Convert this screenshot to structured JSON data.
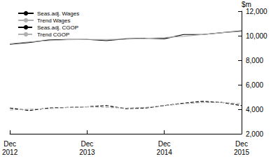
{
  "chart_data": {
    "type": "line",
    "ylabel": "$m",
    "categories": [
      "Dec 2012",
      null,
      null,
      null,
      "Dec 2013",
      null,
      null,
      null,
      "Dec 2014",
      null,
      null,
      null,
      "Dec 2015"
    ],
    "series": [
      {
        "name": "Seas.adj. Wages",
        "color": "#000000",
        "line_style": "solid",
        "values": [
          9300,
          9450,
          9650,
          9700,
          9700,
          9600,
          9750,
          9800,
          9750,
          10100,
          10100,
          10250,
          10400
        ]
      },
      {
        "name": "Trend Wages",
        "color": "#b0b0b0",
        "line_style": "solid",
        "values": [
          9350,
          9500,
          9600,
          9680,
          9700,
          9700,
          9720,
          9780,
          9850,
          9950,
          10100,
          10250,
          10350
        ]
      },
      {
        "name": "Seas.adj. CGOP",
        "color": "#000000",
        "line_style": "dashed",
        "values": [
          4100,
          3900,
          4100,
          4150,
          4200,
          4300,
          4050,
          4100,
          4300,
          4500,
          4650,
          4550,
          4300
        ]
      },
      {
        "name": "Trend CGOP",
        "color": "#b0b0b0",
        "line_style": "dashed",
        "values": [
          3950,
          4000,
          4050,
          4150,
          4200,
          4150,
          4100,
          4150,
          4300,
          4450,
          4550,
          4550,
          4450
        ]
      }
    ],
    "ylim": [
      2000,
      12000
    ],
    "yticks": [
      2000,
      4000,
      6000,
      8000,
      10000,
      12000
    ],
    "grid": false,
    "legend": "upper left"
  }
}
